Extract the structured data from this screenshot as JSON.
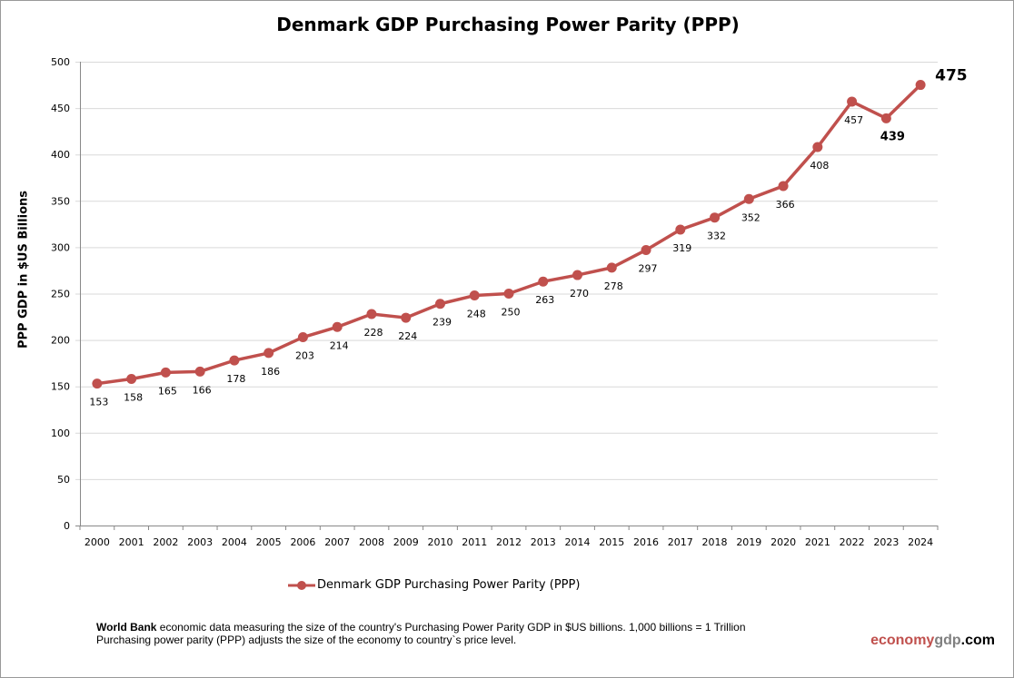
{
  "chart_data": {
    "type": "line",
    "title": "Denmark GDP Purchasing Power Parity (PPP)",
    "xlabel": "",
    "ylabel": "PPP GDP in $US Billions",
    "ylim": [
      0,
      500
    ],
    "yticks": [
      0,
      50,
      100,
      150,
      200,
      250,
      300,
      350,
      400,
      450,
      500
    ],
    "grid": true,
    "legend_position": "bottom",
    "categories": [
      "2000",
      "2001",
      "2002",
      "2003",
      "2004",
      "2005",
      "2006",
      "2007",
      "2008",
      "2009",
      "2010",
      "2011",
      "2012",
      "2013",
      "2014",
      "2015",
      "2016",
      "2017",
      "2018",
      "2019",
      "2020",
      "2021",
      "2022",
      "2023",
      "2024"
    ],
    "series": [
      {
        "name": "Denmark GDP Purchasing Power Parity (PPP)",
        "color": "#c0504d",
        "values": [
          153,
          158,
          165,
          166,
          178,
          186,
          203,
          214,
          228,
          224,
          239,
          248,
          250,
          263,
          270,
          278,
          297,
          319,
          332,
          352,
          366,
          408,
          457,
          439,
          475
        ]
      }
    ]
  },
  "note": {
    "bold": "World Bank",
    "line1": " economic data  measuring the size of the country's Purchasing Power Parity GDP in $US billions. 1,000 billions = 1 Trillion",
    "line2": "Purchasing power  parity (PPP) adjusts the size of the economy to country`s price level."
  },
  "logo": {
    "part1": "economy",
    "part2": "gdp",
    "part3": ".com",
    "color1": "#c0504d",
    "color2": "#808080"
  }
}
